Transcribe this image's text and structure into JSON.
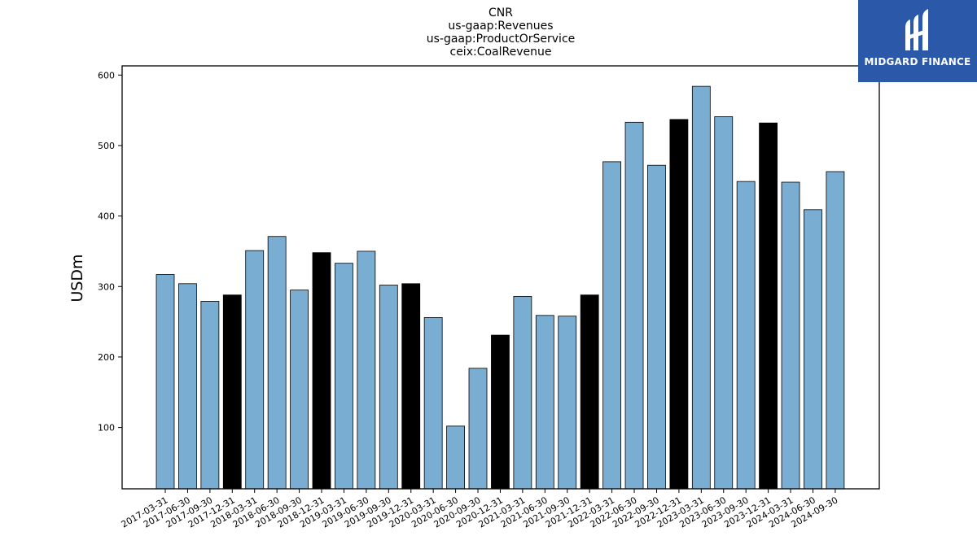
{
  "chart_data": {
    "type": "bar",
    "title_lines": [
      "CNR",
      "us-gaap:Revenues",
      "us-gaap:ProductOrService",
      "ceix:CoalRevenue"
    ],
    "xlabel": "",
    "ylabel": "USDm",
    "ylim": [
      13,
      613
    ],
    "yticks": [
      100,
      200,
      300,
      400,
      500,
      600
    ],
    "grid": false,
    "categories": [
      "2017-03-31",
      "2017-06-30",
      "2017-09-30",
      "2017-12-31",
      "2018-03-31",
      "2018-06-30",
      "2018-09-30",
      "2018-12-31",
      "2019-03-31",
      "2019-06-30",
      "2019-09-30",
      "2019-12-31",
      "2020-03-31",
      "2020-06-30",
      "2020-09-30",
      "2020-12-31",
      "2021-03-31",
      "2021-06-30",
      "2021-09-30",
      "2021-12-31",
      "2022-03-31",
      "2022-06-30",
      "2022-09-30",
      "2022-12-31",
      "2023-03-31",
      "2023-06-30",
      "2023-09-30",
      "2023-12-31",
      "2024-03-31",
      "2024-06-30",
      "2024-09-30"
    ],
    "values": [
      317,
      304,
      279,
      288,
      351,
      371,
      295,
      348,
      333,
      350,
      302,
      304,
      256,
      102,
      184,
      231,
      286,
      259,
      258,
      288,
      477,
      533,
      472,
      537,
      584,
      541,
      449,
      532,
      448,
      409,
      463
    ],
    "highlight_categories": [
      "2017-12-31",
      "2018-12-31",
      "2019-12-31",
      "2020-12-31",
      "2021-12-31",
      "2022-12-31",
      "2023-12-31"
    ],
    "colors": {
      "bar": "#7aadd2",
      "highlight": "#000000",
      "edge": "#000000"
    }
  },
  "logo": {
    "text": "MIDGARD FINANCE",
    "background": "#2b58a8"
  }
}
